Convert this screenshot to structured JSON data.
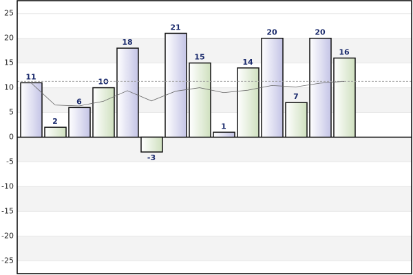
{
  "chart_data": {
    "type": "bar",
    "values": [
      11,
      2,
      6,
      10,
      18,
      -3,
      21,
      15,
      1,
      14,
      20,
      7,
      20,
      16
    ],
    "colors": [
      "#c4c4e6",
      "#cfe0bf"
    ],
    "ylim": [
      -27.6,
      27.6
    ],
    "yticks": [
      -25,
      -20,
      -15,
      -10,
      -5,
      0,
      5,
      10,
      15,
      20,
      25
    ],
    "grid": true,
    "overlays": [
      {
        "type": "line",
        "color": "#666666",
        "values": [
          11,
          6.5,
          6.33,
          7.25,
          9.4,
          7.33,
          9.29,
          10,
          9,
          9.5,
          10.45,
          10.17,
          10.92,
          11.29
        ]
      },
      {
        "type": "hline",
        "color": "#999999",
        "value": 11.29
      }
    ]
  }
}
